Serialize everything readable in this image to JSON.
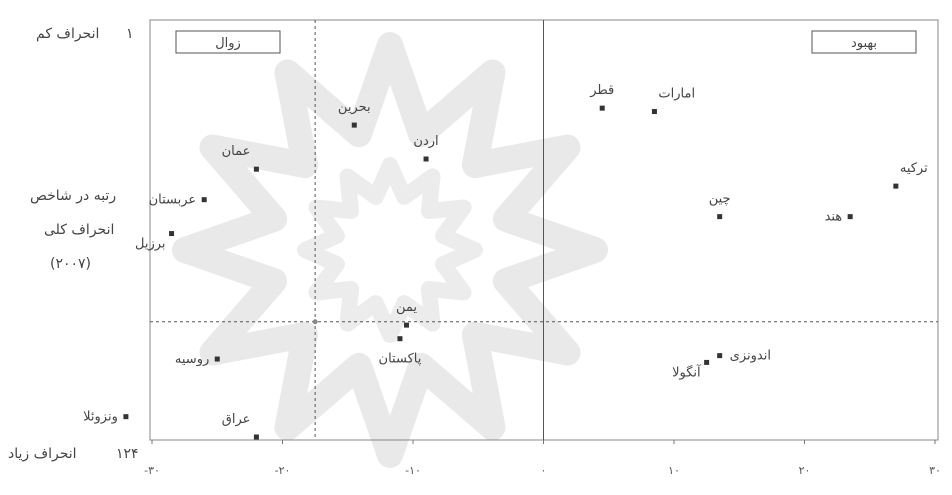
{
  "y_axis": {
    "top_rank": "۱",
    "top_label": "انحراف کم",
    "bottom_rank": "۱۲۴",
    "bottom_label": "انحراف زیاد",
    "title_line1": "رتبه در شاخص",
    "title_line2": "انحراف کلی",
    "title_line3": "(۲۰۰۷)"
  },
  "chart_data": {
    "type": "scatter",
    "xlim": [
      -30,
      30
    ],
    "ylim": [
      124,
      1
    ],
    "x_ticks": [
      {
        "value": -30,
        "label": "-۳۰"
      },
      {
        "value": -20,
        "label": "-۲۰"
      },
      {
        "value": -10,
        "label": "-۱۰"
      },
      {
        "value": 0,
        "label": "۰"
      },
      {
        "value": 10,
        "label": "۱۰"
      },
      {
        "value": 20,
        "label": "۲۰"
      },
      {
        "value": 30,
        "label": "۳۰"
      }
    ],
    "quadrant_labels": {
      "left": "زوال",
      "right": "بهبود"
    },
    "reference_lines": {
      "x_vertical_dashed": -17.5,
      "x_vertical_solid": 0,
      "y_horizontal_dashed": 90
    },
    "points": [
      {
        "name": "قطر",
        "x": 4.5,
        "y": 27,
        "label_pos": "above"
      },
      {
        "name": "امارات",
        "x": 8.5,
        "y": 28,
        "label_pos": "above-right"
      },
      {
        "name": "بحرین",
        "x": -14.5,
        "y": 32,
        "label_pos": "above"
      },
      {
        "name": "اردن",
        "x": -9,
        "y": 42,
        "label_pos": "above"
      },
      {
        "name": "عمان",
        "x": -22,
        "y": 45,
        "label_pos": "above-left"
      },
      {
        "name": "عربستان",
        "x": -26,
        "y": 54,
        "label_pos": "left"
      },
      {
        "name": "برزیل",
        "x": -28.5,
        "y": 64,
        "label_pos": "left-below"
      },
      {
        "name": "ترکیه",
        "x": 27,
        "y": 50,
        "label_pos": "above-right"
      },
      {
        "name": "چین",
        "x": 13.5,
        "y": 59,
        "label_pos": "above"
      },
      {
        "name": "هند",
        "x": 23.5,
        "y": 59,
        "label_pos": "left"
      },
      {
        "name": "یمن",
        "x": -10.5,
        "y": 91,
        "label_pos": "above"
      },
      {
        "name": "پاکستان",
        "x": -11,
        "y": 95,
        "label_pos": "below"
      },
      {
        "name": "روسیه",
        "x": -25,
        "y": 101,
        "label_pos": "left"
      },
      {
        "name": "اندونزی",
        "x": 13.5,
        "y": 100,
        "label_pos": "right"
      },
      {
        "name": "آنگولا",
        "x": 12.5,
        "y": 102,
        "label_pos": "left-below"
      },
      {
        "name": "ونزوئلا",
        "x": -32,
        "y": 118,
        "label_pos": "left"
      },
      {
        "name": "عراق",
        "x": -22,
        "y": 124,
        "label_pos": "above-left"
      }
    ]
  }
}
